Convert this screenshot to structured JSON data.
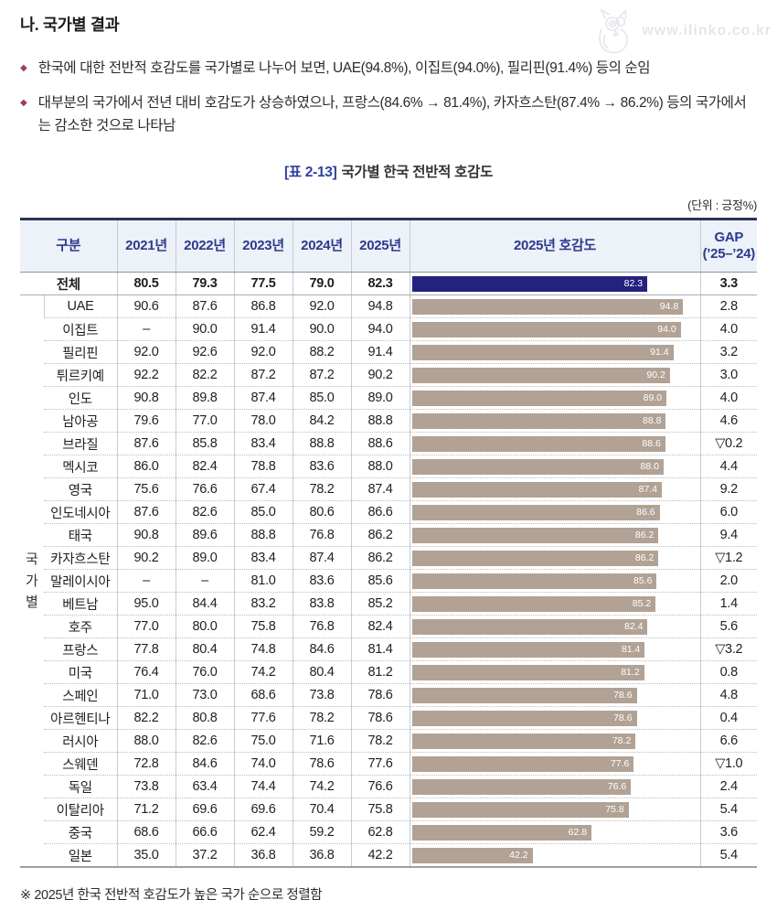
{
  "page": {
    "heading": "나. 국가별 결과",
    "bullets": [
      "한국에 대한 전반적 호감도를 국가별로 나누어 보면, UAE(94.8%), 이집트(94.0%), 필리핀(91.4%) 등의 순임",
      "대부분의 국가에서 전년 대비 호감도가 상승하였으나, 프랑스(84.6% → 81.4%), 카자흐스탄(87.4% → 86.2%) 등의 국가에서는 감소한 것으로 나타남"
    ],
    "watermark": "www.ilinko.co.kr",
    "table_title_tag": "[표 2-13]",
    "table_title": "국가별 한국 전반적 호감도",
    "unit_note": "(단위 : 긍정%)",
    "footnote": "※ 2025년 한국 전반적 호감도가 높은 국가 순으로 정렬함"
  },
  "table": {
    "headers": {
      "category": "구분",
      "years": [
        "2021년",
        "2022년",
        "2023년",
        "2024년",
        "2025년"
      ],
      "bar": "2025년 호감도",
      "gap_line1": "GAP",
      "gap_line2": "(’25–’24)"
    },
    "group_label": "국가별",
    "total": {
      "label": "전체",
      "values": [
        "80.5",
        "79.3",
        "77.5",
        "79.0",
        "82.3"
      ],
      "bar": 82.3,
      "gap": "3.3"
    },
    "rows": [
      {
        "label": "UAE",
        "values": [
          "90.6",
          "87.6",
          "86.8",
          "92.0",
          "94.8"
        ],
        "bar": 94.8,
        "gap": "2.8"
      },
      {
        "label": "이집트",
        "values": [
          "–",
          "90.0",
          "91.4",
          "90.0",
          "94.0"
        ],
        "bar": 94.0,
        "gap": "4.0"
      },
      {
        "label": "필리핀",
        "values": [
          "92.0",
          "92.6",
          "92.0",
          "88.2",
          "91.4"
        ],
        "bar": 91.4,
        "gap": "3.2"
      },
      {
        "label": "튀르키예",
        "values": [
          "92.2",
          "82.2",
          "87.2",
          "87.2",
          "90.2"
        ],
        "bar": 90.2,
        "gap": "3.0"
      },
      {
        "label": "인도",
        "values": [
          "90.8",
          "89.8",
          "87.4",
          "85.0",
          "89.0"
        ],
        "bar": 89.0,
        "gap": "4.0"
      },
      {
        "label": "남아공",
        "values": [
          "79.6",
          "77.0",
          "78.0",
          "84.2",
          "88.8"
        ],
        "bar": 88.8,
        "gap": "4.6"
      },
      {
        "label": "브라질",
        "values": [
          "87.6",
          "85.8",
          "83.4",
          "88.8",
          "88.6"
        ],
        "bar": 88.6,
        "gap": "▽0.2"
      },
      {
        "label": "멕시코",
        "values": [
          "86.0",
          "82.4",
          "78.8",
          "83.6",
          "88.0"
        ],
        "bar": 88.0,
        "gap": "4.4"
      },
      {
        "label": "영국",
        "values": [
          "75.6",
          "76.6",
          "67.4",
          "78.2",
          "87.4"
        ],
        "bar": 87.4,
        "gap": "9.2"
      },
      {
        "label": "인도네시아",
        "values": [
          "87.6",
          "82.6",
          "85.0",
          "80.6",
          "86.6"
        ],
        "bar": 86.6,
        "gap": "6.0"
      },
      {
        "label": "태국",
        "values": [
          "90.8",
          "89.6",
          "88.8",
          "76.8",
          "86.2"
        ],
        "bar": 86.2,
        "gap": "9.4"
      },
      {
        "label": "카자흐스탄",
        "values": [
          "90.2",
          "89.0",
          "83.4",
          "87.4",
          "86.2"
        ],
        "bar": 86.2,
        "gap": "▽1.2"
      },
      {
        "label": "말레이시아",
        "values": [
          "–",
          "–",
          "81.0",
          "83.6",
          "85.6"
        ],
        "bar": 85.6,
        "gap": "2.0"
      },
      {
        "label": "베트남",
        "values": [
          "95.0",
          "84.4",
          "83.2",
          "83.8",
          "85.2"
        ],
        "bar": 85.2,
        "gap": "1.4"
      },
      {
        "label": "호주",
        "values": [
          "77.0",
          "80.0",
          "75.8",
          "76.8",
          "82.4"
        ],
        "bar": 82.4,
        "gap": "5.6"
      },
      {
        "label": "프랑스",
        "values": [
          "77.8",
          "80.4",
          "74.8",
          "84.6",
          "81.4"
        ],
        "bar": 81.4,
        "gap": "▽3.2"
      },
      {
        "label": "미국",
        "values": [
          "76.4",
          "76.0",
          "74.2",
          "80.4",
          "81.2"
        ],
        "bar": 81.2,
        "gap": "0.8"
      },
      {
        "label": "스페인",
        "values": [
          "71.0",
          "73.0",
          "68.6",
          "73.8",
          "78.6"
        ],
        "bar": 78.6,
        "gap": "4.8"
      },
      {
        "label": "아르헨티나",
        "values": [
          "82.2",
          "80.8",
          "77.6",
          "78.2",
          "78.6"
        ],
        "bar": 78.6,
        "gap": "0.4"
      },
      {
        "label": "러시아",
        "values": [
          "88.0",
          "82.6",
          "75.0",
          "71.6",
          "78.2"
        ],
        "bar": 78.2,
        "gap": "6.6"
      },
      {
        "label": "스웨덴",
        "values": [
          "72.8",
          "84.6",
          "74.0",
          "78.6",
          "77.6"
        ],
        "bar": 77.6,
        "gap": "▽1.0"
      },
      {
        "label": "독일",
        "values": [
          "73.8",
          "63.4",
          "74.4",
          "74.2",
          "76.6"
        ],
        "bar": 76.6,
        "gap": "2.4"
      },
      {
        "label": "이탈리아",
        "values": [
          "71.2",
          "69.6",
          "69.6",
          "70.4",
          "75.8"
        ],
        "bar": 75.8,
        "gap": "5.4"
      },
      {
        "label": "중국",
        "values": [
          "68.6",
          "66.6",
          "62.4",
          "59.2",
          "62.8"
        ],
        "bar": 62.8,
        "gap": "3.6"
      },
      {
        "label": "일본",
        "values": [
          "35.0",
          "37.2",
          "36.8",
          "36.8",
          "42.2"
        ],
        "bar": 42.2,
        "gap": "5.4"
      }
    ]
  },
  "chart_data": {
    "type": "bar",
    "orientation": "horizontal",
    "title": "2025년 호감도",
    "xlabel": "긍정%",
    "ylabel": "국가",
    "xlim": [
      0,
      100
    ],
    "categories": [
      "전체",
      "UAE",
      "이집트",
      "필리핀",
      "튀르키예",
      "인도",
      "남아공",
      "브라질",
      "멕시코",
      "영국",
      "인도네시아",
      "태국",
      "카자흐스탄",
      "말레이시아",
      "베트남",
      "호주",
      "프랑스",
      "미국",
      "스페인",
      "아르헨티나",
      "러시아",
      "스웨덴",
      "독일",
      "이탈리아",
      "중국",
      "일본"
    ],
    "values": [
      82.3,
      94.8,
      94.0,
      91.4,
      90.2,
      89.0,
      88.8,
      88.6,
      88.0,
      87.4,
      86.6,
      86.2,
      86.2,
      85.6,
      85.2,
      82.4,
      81.4,
      81.2,
      78.6,
      78.6,
      78.2,
      77.6,
      76.6,
      75.8,
      62.8,
      42.2
    ],
    "bar_color_total": "#24227f",
    "bar_color_country": "#b1a295",
    "grid": false,
    "legend": false
  }
}
